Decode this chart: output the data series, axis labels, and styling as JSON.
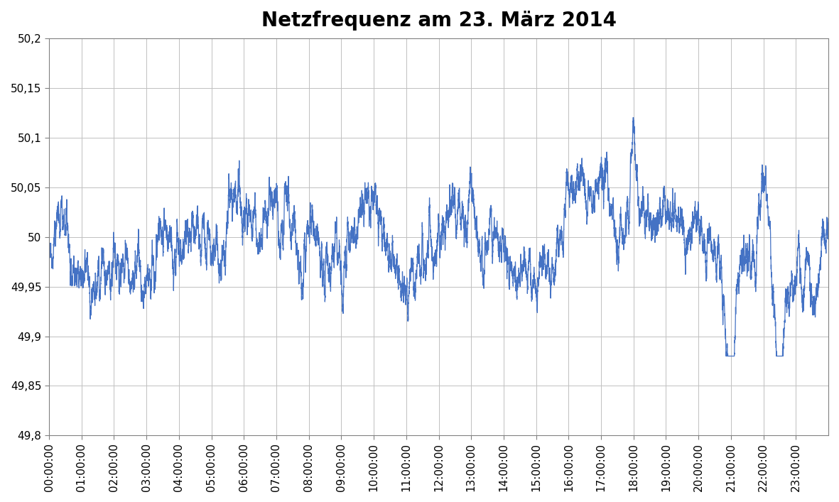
{
  "title": "Netzfrequenz am 23. März 2014",
  "title_fontsize": 20,
  "title_fontweight": "bold",
  "line_color": "#4472C4",
  "line_width": 0.9,
  "ylim": [
    49.8,
    50.2
  ],
  "yticks": [
    49.8,
    49.85,
    49.9,
    49.95,
    50.0,
    50.05,
    50.1,
    50.15,
    50.2
  ],
  "ytick_labels": [
    "49,8",
    "49,85",
    "49,9",
    "49,95",
    "50",
    "50,05",
    "50,1",
    "50,15",
    "50,2"
  ],
  "xtick_labels": [
    "00:00:00",
    "01:00:00",
    "02:00:00",
    "03:00:00",
    "04:00:00",
    "05:00:00",
    "06:00:00",
    "07:00:00",
    "08:00:00",
    "09:00:00",
    "10:00:00",
    "11:00:00",
    "12:00:00",
    "13:00:00",
    "14:00:00",
    "15:00:00",
    "16:00:00",
    "17:00:00",
    "18:00:00",
    "19:00:00",
    "20:00:00",
    "21:00:00",
    "22:00:00",
    "23:00:00"
  ],
  "grid_color": "#C0C0C0",
  "grid_linewidth": 0.7,
  "background_color": "#FFFFFF",
  "tick_fontsize": 11
}
